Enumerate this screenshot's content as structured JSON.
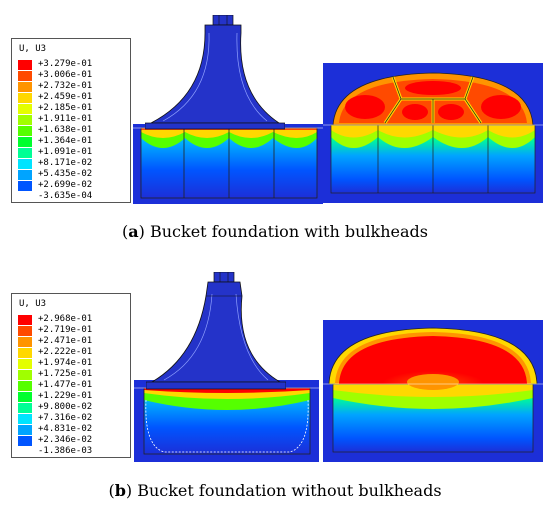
{
  "panel_a": {
    "legend_title": "U, U3",
    "legend_values": [
      "+3.279e-01",
      "+3.006e-01",
      "+2.732e-01",
      "+2.459e-01",
      "+2.185e-01",
      "+1.911e-01",
      "+1.638e-01",
      "+1.364e-01",
      "+1.091e-01",
      "+8.171e-02",
      "+5.435e-02",
      "+2.699e-02",
      "-3.635e-04"
    ],
    "caption_label": "a",
    "caption_text": "Bucket foundation with bulkheads"
  },
  "panel_b": {
    "legend_title": "U, U3",
    "legend_values": [
      "+2.968e-01",
      "+2.719e-01",
      "+2.471e-01",
      "+2.222e-01",
      "+1.974e-01",
      "+1.725e-01",
      "+1.477e-01",
      "+1.229e-01",
      "+9.800e-02",
      "+7.316e-02",
      "+4.831e-02",
      "+2.346e-02",
      "-1.386e-03"
    ],
    "caption_label": "b",
    "caption_text": "Bucket foundation without bulkheads"
  },
  "colors": {
    "scale": [
      "#ff0000",
      "#ff4a00",
      "#ff9400",
      "#ffd800",
      "#e4ff00",
      "#a0ff00",
      "#55ff00",
      "#00ff2e",
      "#00ff95",
      "#00e4ff",
      "#00a4ff",
      "#0055ff",
      "#0000ff"
    ],
    "background_blue": "#1c2fd8",
    "structure_blue": "#2433c9"
  }
}
